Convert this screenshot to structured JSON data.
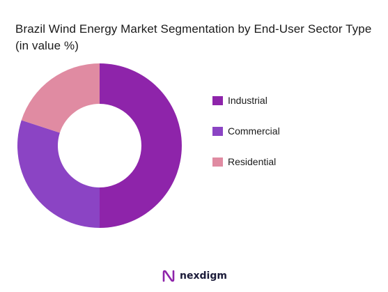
{
  "chart_data": {
    "type": "pie",
    "title": "Brazil Wind Energy Market Segmentation by End-User Sector Type (in value %)",
    "categories": [
      "Industrial",
      "Commercial",
      "Residential"
    ],
    "values": [
      50,
      30,
      20
    ],
    "colors": [
      "#8E24AA",
      "#8B44C4",
      "#E08BA2"
    ],
    "donut": true,
    "legend_position": "right"
  },
  "brand": {
    "name": "nexdigm",
    "logo_icon": "nexdigm-logo-icon"
  }
}
